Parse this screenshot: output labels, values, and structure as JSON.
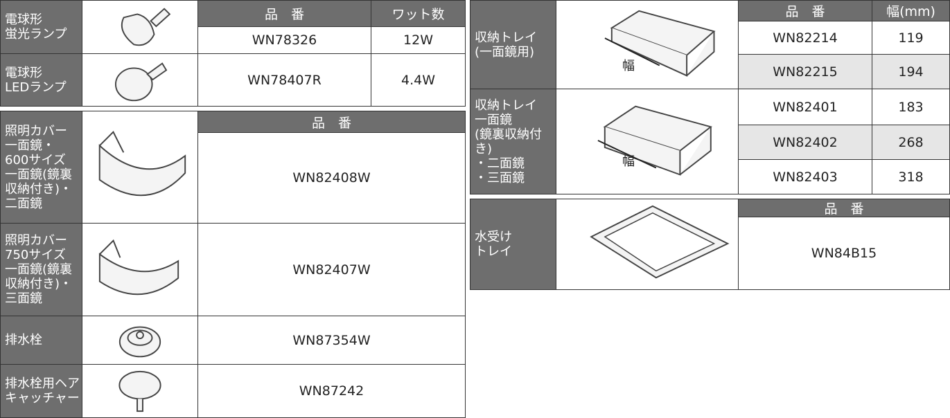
{
  "lamp_table": {
    "headers": [
      "品　番",
      "ワット数"
    ],
    "rows": [
      {
        "label": [
          "電球形",
          "蛍光ランプ"
        ],
        "part_number": "WN78326",
        "wattage": "12W"
      },
      {
        "label": [
          "電球形",
          "LEDランプ"
        ],
        "part_number": "WN78407R",
        "wattage": "4.4W"
      }
    ]
  },
  "cover_table": {
    "header": "品　番",
    "rows": [
      {
        "label": [
          "照明カバー",
          "一面鏡・",
          "600サイズ",
          "一面鏡(鏡裏",
          "収納付き)・",
          "二面鏡"
        ],
        "part_number": "WN82408W"
      },
      {
        "label": [
          "照明カバー",
          "750サイズ",
          "一面鏡(鏡裏",
          "収納付き)・",
          "三面鏡"
        ],
        "part_number": "WN82407W"
      },
      {
        "label": [
          "排水栓"
        ],
        "part_number": "WN87354W"
      },
      {
        "label": [
          "排水栓用ヘア",
          "キャッチャー"
        ],
        "part_number": "WN87242"
      }
    ]
  },
  "tray_table": {
    "headers": [
      "品　番",
      "幅(mm)"
    ],
    "rows": [
      {
        "label": [
          "収納トレイ",
          "(一面鏡用)"
        ],
        "width_label": "幅",
        "items": [
          {
            "part_number": "WN82214",
            "width": 119
          },
          {
            "part_number": "WN82215",
            "width": 194
          }
        ]
      },
      {
        "label": [
          "収納トレイ",
          "一面鏡",
          "(鏡裏収納付き)",
          "・二面鏡",
          "・三面鏡"
        ],
        "width_label": "幅",
        "items": [
          {
            "part_number": "WN82401",
            "width": 183
          },
          {
            "part_number": "WN82402",
            "width": 268
          },
          {
            "part_number": "WN82403",
            "width": 318
          }
        ]
      }
    ]
  },
  "water_tray_table": {
    "header": "品　番",
    "label": [
      "水受け",
      "トレイ"
    ],
    "part_number": "WN84B15"
  }
}
